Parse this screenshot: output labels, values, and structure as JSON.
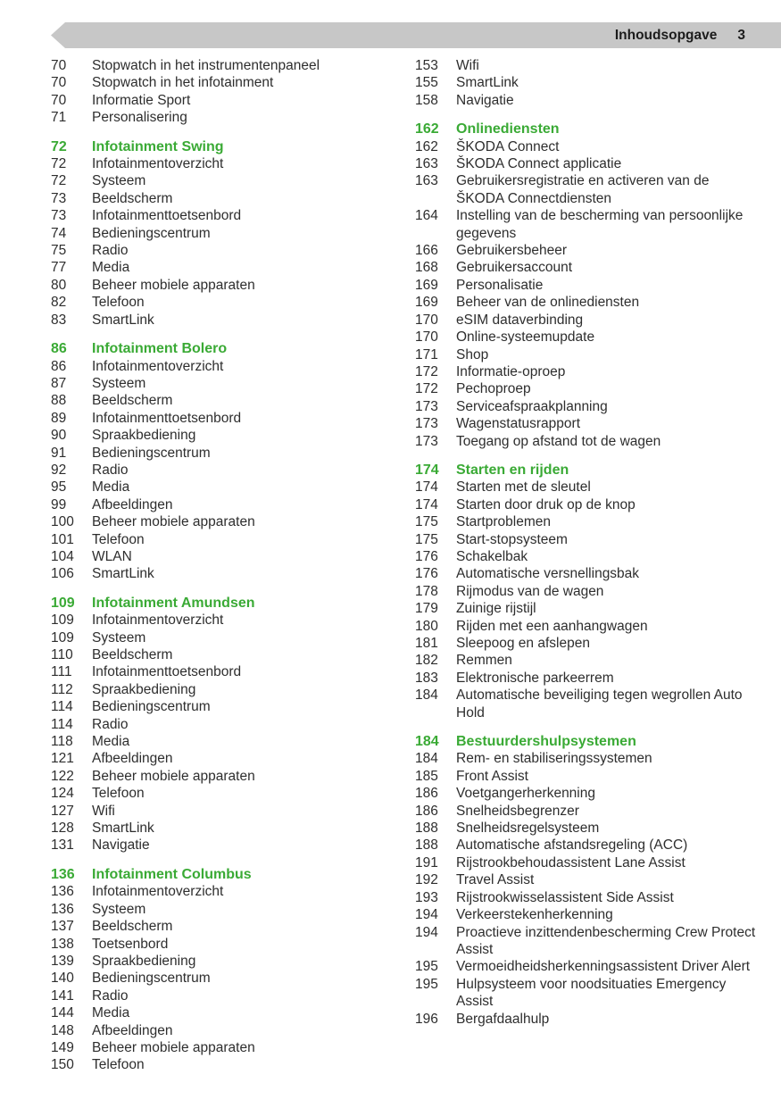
{
  "header": {
    "title": "Inhoudsopgave",
    "page_number": "3"
  },
  "colors": {
    "accent_green": "#3aaa35",
    "header_bar": "#c7c7c7",
    "body_text": "#2e2e2e"
  },
  "columns": [
    {
      "sections": [
        {
          "header": null,
          "items": [
            {
              "page": "70",
              "title": "Stopwatch in het instrumentenpaneel"
            },
            {
              "page": "70",
              "title": "Stopwatch in het infotainment"
            },
            {
              "page": "70",
              "title": "Informatie Sport"
            },
            {
              "page": "71",
              "title": "Personalisering"
            }
          ]
        },
        {
          "header": {
            "page": "72",
            "title": "Infotainment Swing"
          },
          "items": [
            {
              "page": "72",
              "title": "Infotainmentoverzicht"
            },
            {
              "page": "72",
              "title": "Systeem"
            },
            {
              "page": "73",
              "title": "Beeldscherm"
            },
            {
              "page": "73",
              "title": "Infotainmenttoetsenbord"
            },
            {
              "page": "74",
              "title": "Bedieningscentrum"
            },
            {
              "page": "75",
              "title": "Radio"
            },
            {
              "page": "77",
              "title": "Media"
            },
            {
              "page": "80",
              "title": "Beheer mobiele apparaten"
            },
            {
              "page": "82",
              "title": "Telefoon"
            },
            {
              "page": "83",
              "title": "SmartLink"
            }
          ]
        },
        {
          "header": {
            "page": "86",
            "title": "Infotainment Bolero"
          },
          "items": [
            {
              "page": "86",
              "title": "Infotainmentoverzicht"
            },
            {
              "page": "87",
              "title": "Systeem"
            },
            {
              "page": "88",
              "title": "Beeldscherm"
            },
            {
              "page": "89",
              "title": "Infotainmenttoetsenbord"
            },
            {
              "page": "90",
              "title": "Spraakbediening"
            },
            {
              "page": "91",
              "title": "Bedieningscentrum"
            },
            {
              "page": "92",
              "title": "Radio"
            },
            {
              "page": "95",
              "title": "Media"
            },
            {
              "page": "99",
              "title": "Afbeeldingen"
            },
            {
              "page": "100",
              "title": "Beheer mobiele apparaten"
            },
            {
              "page": "101",
              "title": "Telefoon"
            },
            {
              "page": "104",
              "title": "WLAN"
            },
            {
              "page": "106",
              "title": "SmartLink"
            }
          ]
        },
        {
          "header": {
            "page": "109",
            "title": "Infotainment Amundsen"
          },
          "items": [
            {
              "page": "109",
              "title": "Infotainmentoverzicht"
            },
            {
              "page": "109",
              "title": "Systeem"
            },
            {
              "page": "110",
              "title": "Beeldscherm"
            },
            {
              "page": "111",
              "title": "Infotainmenttoetsenbord"
            },
            {
              "page": "112",
              "title": "Spraakbediening"
            },
            {
              "page": "114",
              "title": "Bedieningscentrum"
            },
            {
              "page": "114",
              "title": "Radio"
            },
            {
              "page": "118",
              "title": "Media"
            },
            {
              "page": "121",
              "title": "Afbeeldingen"
            },
            {
              "page": "122",
              "title": "Beheer mobiele apparaten"
            },
            {
              "page": "124",
              "title": "Telefoon"
            },
            {
              "page": "127",
              "title": "Wifi"
            },
            {
              "page": "128",
              "title": "SmartLink"
            },
            {
              "page": "131",
              "title": "Navigatie"
            }
          ]
        },
        {
          "header": {
            "page": "136",
            "title": "Infotainment Columbus"
          },
          "items": [
            {
              "page": "136",
              "title": "Infotainmentoverzicht"
            },
            {
              "page": "136",
              "title": "Systeem"
            },
            {
              "page": "137",
              "title": "Beeldscherm"
            },
            {
              "page": "138",
              "title": "Toetsenbord"
            },
            {
              "page": "139",
              "title": "Spraakbediening"
            },
            {
              "page": "140",
              "title": "Bedieningscentrum"
            },
            {
              "page": "141",
              "title": "Radio"
            },
            {
              "page": "144",
              "title": "Media"
            },
            {
              "page": "148",
              "title": "Afbeeldingen"
            },
            {
              "page": "149",
              "title": "Beheer mobiele apparaten"
            },
            {
              "page": "150",
              "title": "Telefoon"
            }
          ]
        }
      ]
    },
    {
      "sections": [
        {
          "header": null,
          "items": [
            {
              "page": "153",
              "title": "Wifi"
            },
            {
              "page": "155",
              "title": "SmartLink"
            },
            {
              "page": "158",
              "title": "Navigatie"
            }
          ]
        },
        {
          "header": {
            "page": "162",
            "title": "Onlinediensten"
          },
          "items": [
            {
              "page": "162",
              "title": "ŠKODA Connect"
            },
            {
              "page": "163",
              "title": "ŠKODA Connect applicatie"
            },
            {
              "page": "163",
              "title": "Gebruikersregistratie en activeren van de ŠKODA Connectdiensten"
            },
            {
              "page": "164",
              "title": "Instelling van de bescherming van persoonlijke gegevens"
            },
            {
              "page": "166",
              "title": "Gebruikersbeheer"
            },
            {
              "page": "168",
              "title": "Gebruikersaccount"
            },
            {
              "page": "169",
              "title": "Personalisatie"
            },
            {
              "page": "169",
              "title": "Beheer van de onlinediensten"
            },
            {
              "page": "170",
              "title": "eSIM dataverbinding"
            },
            {
              "page": "170",
              "title": "Online-systeemupdate"
            },
            {
              "page": "171",
              "title": "Shop"
            },
            {
              "page": "172",
              "title": "Informatie-oproep"
            },
            {
              "page": "172",
              "title": "Pechoproep"
            },
            {
              "page": "173",
              "title": "Serviceafspraakplanning"
            },
            {
              "page": "173",
              "title": "Wagenstatusrapport"
            },
            {
              "page": "173",
              "title": "Toegang op afstand tot de wagen"
            }
          ]
        },
        {
          "header": {
            "page": "174",
            "title": "Starten en rijden"
          },
          "items": [
            {
              "page": "174",
              "title": "Starten met de sleutel"
            },
            {
              "page": "174",
              "title": "Starten door druk op de knop"
            },
            {
              "page": "175",
              "title": "Startproblemen"
            },
            {
              "page": "175",
              "title": "Start-stopsysteem"
            },
            {
              "page": "176",
              "title": "Schakelbak"
            },
            {
              "page": "176",
              "title": "Automatische versnellingsbak"
            },
            {
              "page": "178",
              "title": "Rijmodus van de wagen"
            },
            {
              "page": "179",
              "title": "Zuinige rijstijl"
            },
            {
              "page": "180",
              "title": "Rijden met een aanhangwagen"
            },
            {
              "page": "181",
              "title": "Sleepoog en afslepen"
            },
            {
              "page": "182",
              "title": "Remmen"
            },
            {
              "page": "183",
              "title": "Elektronische parkeerrem"
            },
            {
              "page": "184",
              "title": "Automatische beveiliging tegen wegrollen Auto Hold"
            }
          ]
        },
        {
          "header": {
            "page": "184",
            "title": "Bestuurdershulpsystemen"
          },
          "items": [
            {
              "page": "184",
              "title": "Rem- en stabiliseringssystemen"
            },
            {
              "page": "185",
              "title": "Front Assist"
            },
            {
              "page": "186",
              "title": "Voetgangerherkenning"
            },
            {
              "page": "186",
              "title": "Snelheidsbegrenzer"
            },
            {
              "page": "188",
              "title": "Snelheidsregelsysteem"
            },
            {
              "page": "188",
              "title": "Automatische afstandsregeling (ACC)"
            },
            {
              "page": "191",
              "title": "Rijstrookbehoudassistent Lane Assist"
            },
            {
              "page": "192",
              "title": "Travel Assist"
            },
            {
              "page": "193",
              "title": "Rijstrookwisselassistent Side Assist"
            },
            {
              "page": "194",
              "title": "Verkeerstekenherkenning"
            },
            {
              "page": "194",
              "title": "Proactieve inzittendenbescherming Crew Protect Assist"
            },
            {
              "page": "195",
              "title": "Vermoeidheidsherkenningsassistent Driver Alert"
            },
            {
              "page": "195",
              "title": "Hulpsysteem voor noodsituaties Emergency Assist"
            },
            {
              "page": "196",
              "title": "Bergafdaalhulp"
            }
          ]
        }
      ]
    }
  ]
}
